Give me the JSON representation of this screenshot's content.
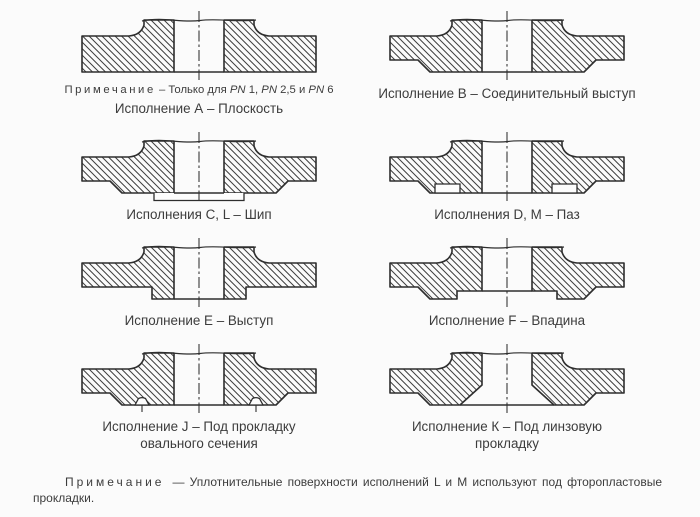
{
  "colors": {
    "background": "#fbfbfb",
    "ink": "#2e2e2e",
    "hatch": "#3f3f3f",
    "paper_white": "#fdfdfd",
    "text": "#3c3c3c"
  },
  "figures": [
    {
      "variant": "A",
      "drawing": "flange-section-flat-face",
      "note_rich": [
        {
          "text": "Примечание",
          "spaced": true
        },
        {
          "text": " – Только для "
        },
        {
          "text": "PN",
          "italic": true
        },
        {
          "text": " 1, "
        },
        {
          "text": "PN",
          "italic": true
        },
        {
          "text": " 2,5 и "
        },
        {
          "text": "PN",
          "italic": true
        },
        {
          "text": " 6"
        }
      ],
      "caption_lines": [
        "Исполнение А – Плоскость"
      ]
    },
    {
      "variant": "B",
      "drawing": "flange-section-raised-connecting-face",
      "caption_lines": [
        "Исполнение В – Соединительный выступ"
      ]
    },
    {
      "variant": "CL",
      "drawing": "flange-section-tongue",
      "caption_lines": [
        "Исполнения С, L – Шип"
      ]
    },
    {
      "variant": "DM",
      "drawing": "flange-section-groove",
      "caption_lines": [
        "Исполнения D, М – Паз"
      ]
    },
    {
      "variant": "E",
      "drawing": "flange-section-male-face",
      "caption_lines": [
        "Исполнение Е – Выступ"
      ]
    },
    {
      "variant": "F",
      "drawing": "flange-section-female-face",
      "caption_lines": [
        "Исполнение F – Впадина"
      ]
    },
    {
      "variant": "J",
      "drawing": "flange-section-oval-gasket-seat",
      "caption_lines": [
        "Исполнение J – Под прокладку",
        "овального сечения"
      ]
    },
    {
      "variant": "K",
      "drawing": "flange-section-lens-gasket-seat",
      "caption_lines": [
        "Исполнение К – Под линзовую",
        "прокладку"
      ]
    }
  ],
  "footnote": {
    "label": "Примечание",
    "text": "— Уплотнительные поверхности исполнений L и М используют под фторопластовые прокладки."
  }
}
